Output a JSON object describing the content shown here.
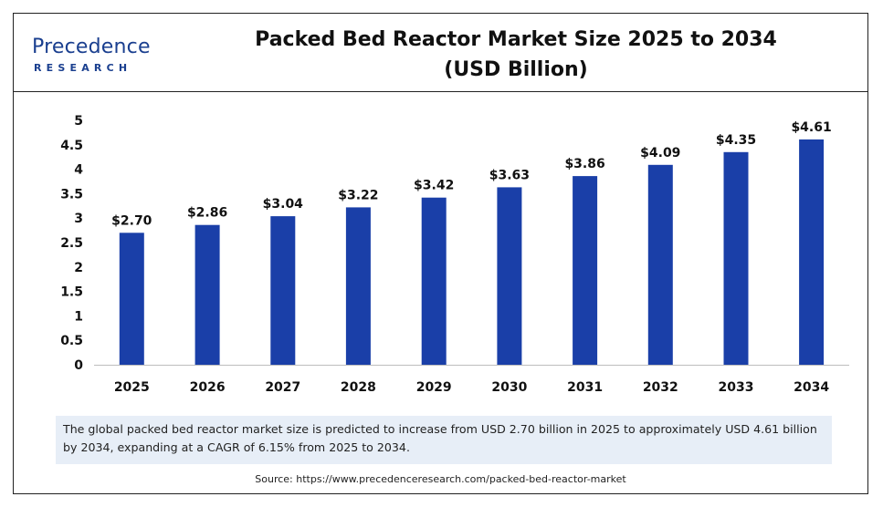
{
  "header": {
    "logo_word": "Precedence",
    "logo_sub": "RESEARCH",
    "title_line1": "Packed Bed Reactor Market Size 2025 to 2034",
    "title_line2": "(USD Billion)"
  },
  "chart_data": {
    "type": "bar",
    "title": "Packed Bed Reactor Market Size 2025 to 2034 (USD Billion)",
    "categories": [
      "2025",
      "2026",
      "2027",
      "2028",
      "2029",
      "2030",
      "2031",
      "2032",
      "2033",
      "2034"
    ],
    "values": [
      2.7,
      2.86,
      3.04,
      3.22,
      3.42,
      3.63,
      3.86,
      4.09,
      4.35,
      4.61
    ],
    "value_labels": [
      "$2.70",
      "$2.86",
      "$3.04",
      "$3.22",
      "$3.42",
      "$3.63",
      "$3.86",
      "$4.09",
      "$4.35",
      "$4.61"
    ],
    "y_ticks": [
      "0",
      "0.5",
      "1",
      "1.5",
      "2",
      "2.5",
      "3",
      "3.5",
      "4",
      "4.5",
      "5"
    ],
    "ylim": [
      0,
      5
    ],
    "grid": false,
    "legend": "none",
    "bar_color": "#1a3fa8"
  },
  "note": "The global packed bed reactor market size is predicted to increase from USD 2.70 billion in 2025 to approximately USD 4.61 billion by 2034, expanding at a CAGR of 6.15% from 2025 to 2034.",
  "source": "Source: https://www.precedenceresearch.com/packed-bed-reactor-market"
}
